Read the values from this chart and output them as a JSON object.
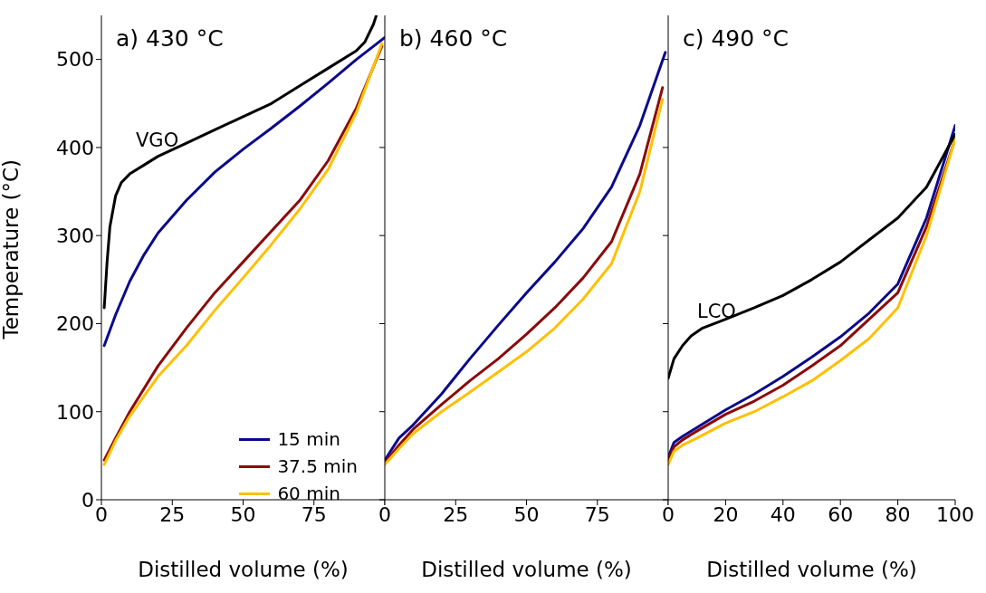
{
  "chart_data": [
    {
      "type": "line",
      "title": "a) 430 °C",
      "xlabel": "Distilled volume (%)",
      "ylabel": "Temperature (°C)",
      "xlim": [
        0,
        100
      ],
      "xticks": [
        0,
        25,
        50,
        75,
        {
          "value": 100,
          "label": null
        }
      ],
      "ylim": [
        0,
        550
      ],
      "yticks": [
        0,
        100,
        200,
        300,
        400,
        500
      ],
      "legend": "bottom right",
      "grid": false,
      "marker": "none",
      "line_style": "solid",
      "annotations": [
        "VGO"
      ],
      "series": [
        {
          "name": "15 min",
          "color": "#0a0a8c",
          "x": [
            1,
            5,
            10,
            15,
            20,
            30,
            40,
            50,
            60,
            70,
            80,
            90,
            100
          ],
          "values": [
            175,
            210,
            248,
            278,
            303,
            340,
            372,
            398,
            422,
            447,
            473,
            500,
            525
          ]
        },
        {
          "name": "37.5 min",
          "color": "#8b0a0a",
          "x": [
            1,
            5,
            10,
            20,
            30,
            40,
            50,
            60,
            70,
            80,
            90,
            99
          ],
          "values": [
            45,
            70,
            100,
            152,
            195,
            235,
            270,
            305,
            340,
            385,
            445,
            515
          ]
        },
        {
          "name": "60 min",
          "color": "#ffc000",
          "x": [
            1,
            5,
            10,
            20,
            30,
            40,
            50,
            60,
            70,
            80,
            90,
            99
          ],
          "values": [
            40,
            67,
            95,
            140,
            175,
            215,
            252,
            290,
            330,
            375,
            440,
            518
          ]
        },
        {
          "color": "#000000",
          "x": [
            1,
            2,
            3,
            5,
            7,
            10,
            15,
            20,
            30,
            40,
            50,
            60,
            70,
            80,
            90,
            93,
            96,
            97
          ],
          "values": [
            218,
            270,
            310,
            345,
            360,
            370,
            380,
            390,
            405,
            420,
            435,
            450,
            470,
            490,
            510,
            520,
            540,
            550
          ]
        }
      ]
    },
    {
      "type": "line",
      "title": "b) 460 °C",
      "xlabel": "Distilled volume (%)",
      "xlim": [
        0,
        100
      ],
      "xticks": [
        0,
        25,
        50,
        75,
        {
          "value": 100,
          "label": null
        }
      ],
      "ylim": [
        0,
        550
      ],
      "yticks": [
        0,
        100,
        200,
        300,
        400,
        500
      ],
      "tick_labels": "x",
      "grid": false,
      "marker": "none",
      "line_style": "solid",
      "series": [
        {
          "color": "#0a0a8c",
          "x": [
            0,
            5,
            10,
            20,
            30,
            40,
            50,
            60,
            70,
            80,
            90,
            99
          ],
          "values": [
            45,
            70,
            85,
            120,
            160,
            198,
            235,
            270,
            308,
            355,
            425,
            508
          ]
        },
        {
          "color": "#8b0a0a",
          "x": [
            0,
            5,
            10,
            20,
            30,
            40,
            50,
            60,
            70,
            80,
            90,
            98
          ],
          "values": [
            42,
            62,
            80,
            108,
            135,
            160,
            188,
            218,
            252,
            293,
            370,
            468
          ]
        },
        {
          "color": "#ffc000",
          "x": [
            0,
            5,
            10,
            20,
            30,
            40,
            50,
            60,
            70,
            80,
            90,
            98
          ],
          "values": [
            40,
            58,
            75,
            100,
            122,
            145,
            168,
            195,
            228,
            268,
            350,
            455
          ]
        }
      ]
    },
    {
      "type": "line",
      "title": "c) 490 °C",
      "xlabel": "Distilled volume (%)",
      "xlim": [
        0,
        100
      ],
      "xticks": [
        0,
        20,
        40,
        60,
        80,
        100
      ],
      "ylim": [
        0,
        550
      ],
      "yticks": [
        0,
        100,
        200,
        300,
        400,
        500
      ],
      "tick_labels": "x",
      "grid": false,
      "marker": "none",
      "line_style": "solid",
      "annotations": [
        "LCO"
      ],
      "series": [
        {
          "color": "#0a0a8c",
          "x": [
            0,
            2,
            5,
            10,
            20,
            30,
            40,
            50,
            60,
            70,
            80,
            90,
            100
          ],
          "values": [
            48,
            65,
            72,
            82,
            102,
            120,
            140,
            162,
            185,
            212,
            245,
            320,
            425
          ]
        },
        {
          "color": "#8b0a0a",
          "x": [
            0,
            2,
            5,
            10,
            20,
            30,
            40,
            50,
            60,
            70,
            80,
            90,
            100
          ],
          "values": [
            45,
            60,
            68,
            78,
            97,
            112,
            130,
            152,
            175,
            205,
            235,
            310,
            410
          ]
        },
        {
          "color": "#ffc000",
          "x": [
            0,
            2,
            5,
            10,
            20,
            30,
            40,
            50,
            60,
            70,
            80,
            90,
            100
          ],
          "values": [
            40,
            55,
            62,
            70,
            87,
            100,
            117,
            135,
            158,
            183,
            218,
            300,
            410
          ]
        },
        {
          "color": "#000000",
          "x": [
            0,
            2,
            5,
            8,
            12,
            20,
            30,
            40,
            50,
            60,
            70,
            80,
            90,
            95,
            100
          ],
          "values": [
            138,
            160,
            175,
            186,
            195,
            205,
            218,
            232,
            250,
            270,
            295,
            320,
            355,
            385,
            415
          ]
        }
      ]
    }
  ]
}
